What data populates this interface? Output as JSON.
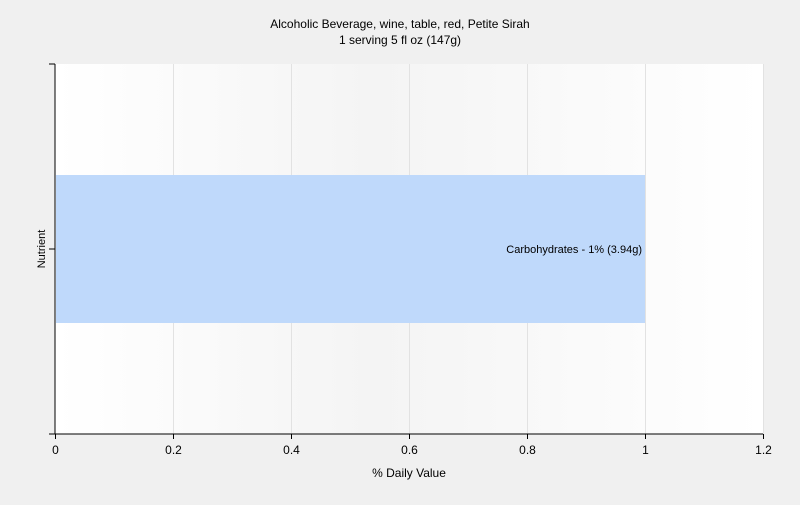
{
  "chart_data": {
    "type": "bar",
    "orientation": "horizontal",
    "title": "Alcoholic Beverage, wine, table, red, Petite Sirah",
    "subtitle": "1 serving 5 fl oz (147g)",
    "xlabel": "% Daily Value",
    "ylabel": "Nutrient",
    "xlim": [
      0,
      1.2
    ],
    "x_ticks": [
      0,
      0.2,
      0.4,
      0.6,
      0.8,
      1,
      1.2
    ],
    "x_tick_labels": [
      "0",
      "0.2",
      "0.4",
      "0.6",
      "0.8",
      "1",
      "1.2"
    ],
    "grid": true,
    "categories": [
      "Carbohydrates"
    ],
    "values": [
      1
    ],
    "data_labels": [
      "Carbohydrates - 1% (3.94g)"
    ],
    "bar_color": "#bfd9fb",
    "plot_background": "#ffffff"
  }
}
